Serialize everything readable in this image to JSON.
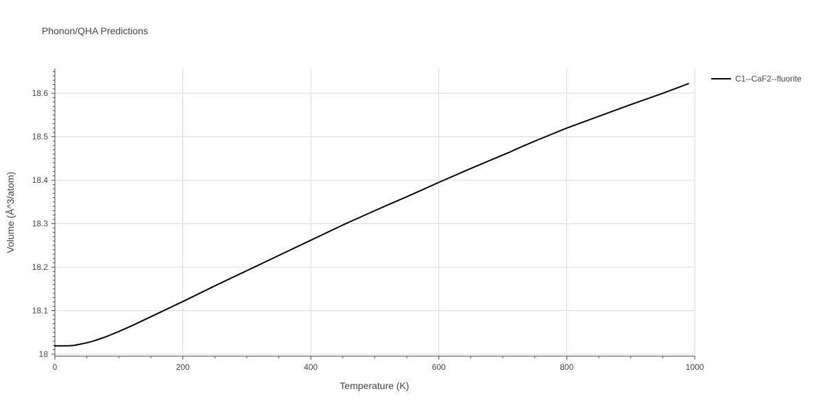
{
  "chart_data": {
    "type": "line",
    "title": "Phonon/QHA Predictions",
    "xlabel": "Temperature (K)",
    "ylabel": "Volume (Å^3/atom)",
    "xlim": [
      0,
      1000
    ],
    "ylim": [
      17.9952,
      18.657
    ],
    "x_ticks": [
      0,
      200,
      400,
      600,
      800,
      1000
    ],
    "y_ticks": [
      18,
      18.1,
      18.2,
      18.3,
      18.4,
      18.5,
      18.6
    ],
    "x_tick_labels": [
      "0",
      "200",
      "400",
      "600",
      "800",
      "1000"
    ],
    "y_tick_labels": [
      "18",
      "18.1",
      "18.2",
      "18.3",
      "18.4",
      "18.5",
      "18.6"
    ],
    "grid": true,
    "legend_position": "top-right",
    "series": [
      {
        "name": "C1--CaF2--fluorite",
        "color": "#000000",
        "x": [
          0,
          10,
          20,
          30,
          40,
          50,
          60,
          70,
          80,
          90,
          100,
          120,
          140,
          160,
          180,
          200,
          250,
          300,
          350,
          400,
          450,
          500,
          520,
          550,
          600,
          650,
          700,
          710,
          720,
          750,
          800,
          850,
          900,
          950,
          990
        ],
        "y": [
          18.019,
          18.019,
          18.019,
          18.02,
          18.023,
          18.026,
          18.03,
          18.035,
          18.04,
          18.046,
          18.052,
          18.065,
          18.079,
          18.093,
          18.107,
          18.121,
          18.157,
          18.192,
          18.227,
          18.262,
          18.297,
          18.33,
          18.343,
          18.362,
          18.395,
          18.427,
          18.458,
          18.464,
          18.471,
          18.49,
          18.52,
          18.547,
          18.574,
          18.6,
          18.622
        ]
      }
    ]
  }
}
